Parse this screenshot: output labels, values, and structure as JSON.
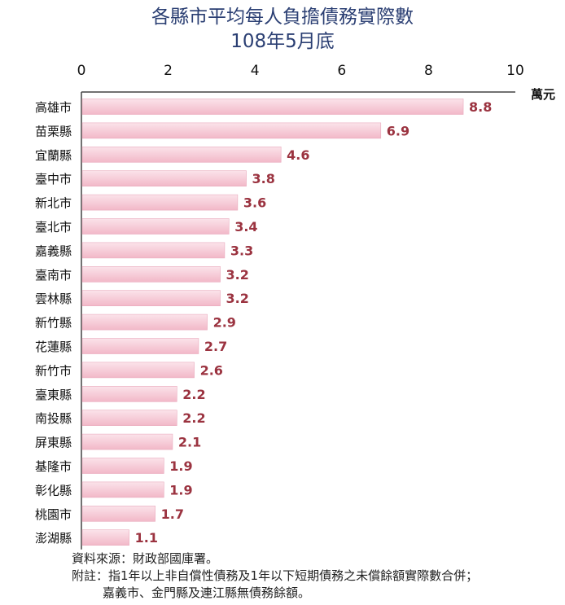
{
  "chart_data": {
    "type": "bar",
    "orientation": "horizontal",
    "title": "各縣市平均每人負擔債務實際數",
    "subtitle": "108年5月底",
    "unit": "萬元",
    "xlim": [
      0,
      10
    ],
    "xticks": [
      "0",
      "2",
      "4",
      "6",
      "8",
      "10"
    ],
    "categories": [
      "高雄市",
      "苗栗縣",
      "宜蘭縣",
      "臺中市",
      "新北市",
      "臺北市",
      "嘉義縣",
      "臺南市",
      "雲林縣",
      "新竹縣",
      "花蓮縣",
      "新竹市",
      "臺東縣",
      "南投縣",
      "屏東縣",
      "基隆市",
      "彰化縣",
      "桃園市",
      "澎湖縣"
    ],
    "values": [
      8.8,
      6.9,
      4.6,
      3.8,
      3.6,
      3.4,
      3.3,
      3.2,
      3.2,
      2.9,
      2.7,
      2.6,
      2.2,
      2.2,
      2.1,
      1.9,
      1.9,
      1.7,
      1.1
    ],
    "value_labels": [
      "8.8",
      "6.9",
      "4.6",
      "3.8",
      "3.6",
      "3.4",
      "3.3",
      "3.2",
      "3.2",
      "2.9",
      "2.7",
      "2.6",
      "2.2",
      "2.2",
      "2.1",
      "1.9",
      "1.9",
      "1.7",
      "1.1"
    ],
    "grid": false,
    "legend": "none",
    "colors": {
      "bar": "#f2b8c8",
      "value_label": "#9b3340",
      "title": "#2b3f73"
    }
  },
  "notes": {
    "source": "資料來源：財政部國庫署。",
    "note_line1": "附註：指1年以上非自償性債務及1年以下短期債務之未償餘額實際數合併；",
    "note_line2": "嘉義市、金門縣及連江縣無債務餘額。"
  }
}
